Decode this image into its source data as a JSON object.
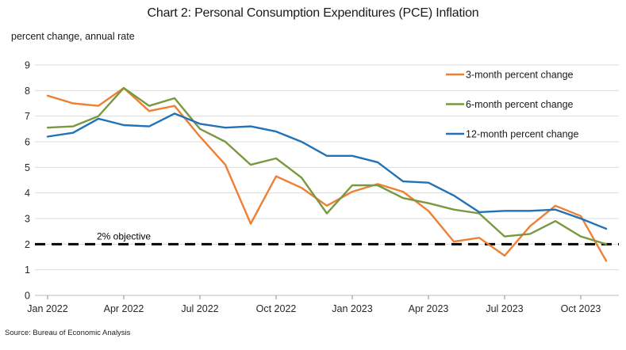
{
  "title": "Chart 2: Personal Consumption Expenditures (PCE) Inflation",
  "subtitle": "percent change, annual rate",
  "source": "Source: Bureau of Economic Analysis",
  "chart_data": {
    "type": "line",
    "x": [
      "Jan 2022",
      "Feb 2022",
      "Mar 2022",
      "Apr 2022",
      "May 2022",
      "Jun 2022",
      "Jul 2022",
      "Aug 2022",
      "Sep 2022",
      "Oct 2022",
      "Nov 2022",
      "Dec 2022",
      "Jan 2023",
      "Feb 2023",
      "Mar 2023",
      "Apr 2023",
      "May 2023",
      "Jun 2023",
      "Jul 2023",
      "Aug 2023",
      "Sep 2023",
      "Oct 2023",
      "Nov 2023"
    ],
    "x_tick_labels": [
      "Jan 2022",
      "Apr 2022",
      "Jul 2022",
      "Oct 2022",
      "Jan 2023",
      "Apr 2023",
      "Jul 2023",
      "Oct 2023"
    ],
    "y_ticks": [
      0,
      1,
      2,
      3,
      4,
      5,
      6,
      7,
      8,
      9
    ],
    "ylim": [
      0,
      9
    ],
    "grid": "horizontal",
    "legend_position": "top-right",
    "series": [
      {
        "name": "3-month percent change",
        "color": "#ED8033",
        "values": [
          7.8,
          7.5,
          7.4,
          8.1,
          7.2,
          7.4,
          6.2,
          5.1,
          2.8,
          4.65,
          4.2,
          3.5,
          4.05,
          4.35,
          4.05,
          3.3,
          2.1,
          2.25,
          1.55,
          2.7,
          3.5,
          3.1,
          1.35
        ]
      },
      {
        "name": "6-month percent change",
        "color": "#78993F",
        "values": [
          6.55,
          6.6,
          7.0,
          8.1,
          7.4,
          7.7,
          6.5,
          6.0,
          5.1,
          5.35,
          4.6,
          3.2,
          4.3,
          4.3,
          3.8,
          3.6,
          3.35,
          3.2,
          2.3,
          2.4,
          2.9,
          2.3,
          2.0
        ]
      },
      {
        "name": "12-month percent change",
        "color": "#2172B6",
        "values": [
          6.2,
          6.35,
          6.9,
          6.65,
          6.6,
          7.1,
          6.7,
          6.55,
          6.6,
          6.4,
          6.0,
          5.45,
          5.45,
          5.2,
          4.45,
          4.4,
          3.9,
          3.25,
          3.3,
          3.3,
          3.35,
          3.0,
          2.6
        ]
      }
    ],
    "reference_line": {
      "value": 2,
      "label": "2% objective",
      "style": "dashed",
      "color": "#000000"
    },
    "grid_color": "#DBDBDB",
    "axis_color": "#C2C2C2",
    "tick_color": "#8C8C8C",
    "label_color": "#262626"
  }
}
